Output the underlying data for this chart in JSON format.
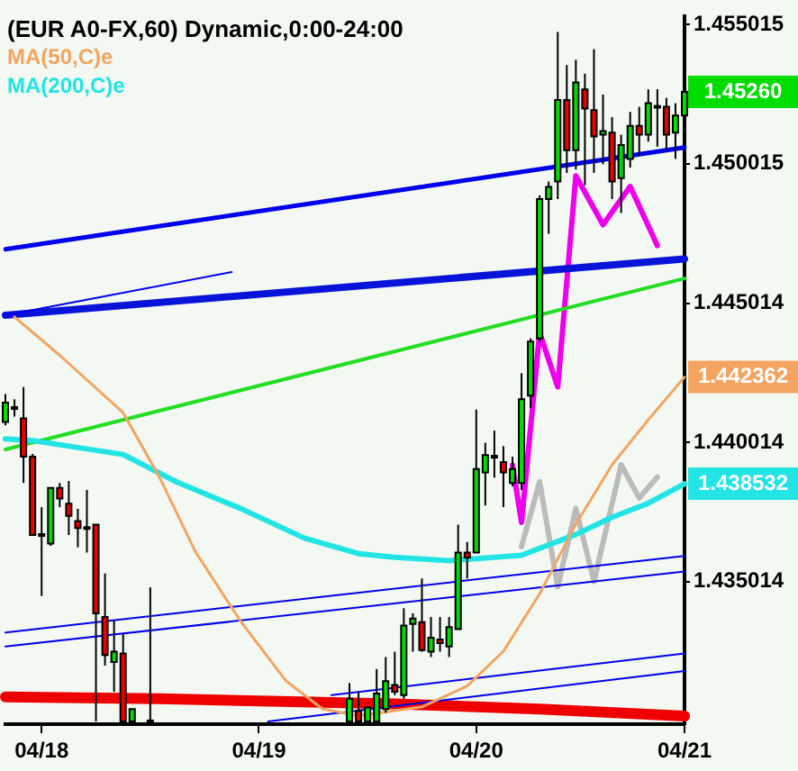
{
  "chart_data": {
    "type": "candlestick",
    "title": "(EUR A0-FX,60) Dynamic,0:00-24:00",
    "categories": [
      null,
      null,
      null,
      null,
      "04/18",
      null,
      null,
      null,
      null,
      null,
      null,
      null,
      null,
      null,
      null,
      null,
      null,
      null,
      null,
      null,
      null,
      null,
      null,
      null,
      null,
      null,
      null,
      null,
      "04/19",
      null,
      null,
      null,
      null,
      null,
      null,
      null,
      null,
      null,
      null,
      null,
      null,
      null,
      null,
      null,
      null,
      null,
      null,
      null,
      null,
      null,
      null,
      null,
      "04/20",
      null,
      null,
      null,
      null,
      null,
      null,
      null,
      null,
      null,
      null,
      null,
      null,
      null,
      null,
      null,
      null,
      null,
      null,
      null,
      null,
      null,
      null,
      "04/21"
    ],
    "ohlc": [
      [
        1.44075,
        1.44175,
        1.44063,
        1.44144
      ],
      [
        1.44119,
        1.44156,
        1.44094,
        1.44125
      ],
      [
        1.44088,
        1.442,
        1.43856,
        1.4395
      ],
      [
        1.4395,
        1.4396,
        1.43669,
        1.43669
      ],
      [
        1.43669,
        1.43769,
        1.4345,
        1.43663
      ],
      [
        1.43638,
        1.4384,
        1.4363,
        1.43838
      ],
      [
        1.43838,
        1.43856,
        1.43769,
        1.438
      ],
      [
        1.43781,
        1.43863,
        1.43669,
        1.43738
      ],
      [
        1.43719,
        1.43763,
        1.43625,
        1.43694
      ],
      [
        1.43694,
        1.43831,
        1.43606,
        1.4369
      ],
      [
        1.43706,
        1.43706,
        1.43,
        1.43388
      ],
      [
        1.43375,
        1.43531,
        1.432,
        1.43238
      ],
      [
        1.43213,
        1.43363,
        1.43106,
        1.4325
      ],
      [
        1.43244,
        1.43313,
        1.43,
        1.43
      ],
      [
        1.43,
        1.43044,
        1.43,
        1.43044
      ],
      null,
      [
        1.43,
        1.43481,
        1.43,
        1.43
      ],
      null,
      null,
      null,
      null,
      null,
      null,
      null,
      null,
      null,
      null,
      null,
      null,
      null,
      null,
      null,
      null,
      null,
      null,
      null,
      null,
      null,
      [
        1.43,
        1.43138,
        1.43,
        1.43081
      ],
      [
        1.43038,
        1.43106,
        1.43,
        1.43
      ],
      [
        1.43,
        1.4305,
        1.43,
        1.4305
      ],
      [
        1.43,
        1.43188,
        1.43,
        1.431
      ],
      [
        1.43044,
        1.43231,
        1.43031,
        1.43144
      ],
      [
        1.43131,
        1.4325,
        1.43094,
        1.43106
      ],
      [
        1.43094,
        1.43406,
        1.43081,
        1.43344
      ],
      [
        1.4335,
        1.43388,
        1.4325,
        1.43369
      ],
      [
        1.43356,
        1.43513,
        1.4325,
        1.43256
      ],
      [
        1.4325,
        1.43375,
        1.43231,
        1.433
      ],
      [
        1.43294,
        1.43375,
        1.4325,
        1.43281
      ],
      [
        1.43269,
        1.43375,
        1.43231,
        1.43338
      ],
      [
        1.43331,
        1.43706,
        1.43331,
        1.43606
      ],
      [
        1.43606,
        1.43644,
        1.43513,
        1.43588
      ],
      [
        1.43606,
        1.44119,
        1.43606,
        1.43906
      ],
      [
        1.43894,
        1.44,
        1.43775,
        1.43956
      ],
      [
        1.4395,
        1.44044,
        1.43875,
        1.43944
      ],
      [
        1.43931,
        1.43988,
        1.43769,
        1.43894
      ],
      [
        1.43856,
        1.4395,
        1.43844,
        1.43906
      ],
      [
        1.43856,
        1.4425,
        1.43831,
        1.44156
      ],
      [
        1.44169,
        1.44375,
        1.44125,
        1.44363
      ],
      [
        1.44375,
        1.44888,
        1.44363,
        1.44875
      ],
      [
        1.44875,
        1.44938,
        1.4475,
        1.44919
      ],
      [
        1.44938,
        1.45475,
        1.44875,
        1.45231
      ],
      [
        1.45231,
        1.45356,
        1.44969,
        1.4505
      ],
      [
        1.4505,
        1.45375,
        1.44981,
        1.45294
      ],
      [
        1.45269,
        1.45325,
        1.44925,
        1.452
      ],
      [
        1.45194,
        1.45413,
        1.44969,
        1.451
      ],
      [
        1.45106,
        1.4525,
        1.45,
        1.45119
      ],
      [
        1.45113,
        1.45169,
        1.44875,
        1.44938
      ],
      [
        1.4495,
        1.45106,
        1.44825,
        1.45069
      ],
      [
        1.45019,
        1.45188,
        1.44988,
        1.45138
      ],
      [
        1.45138,
        1.45206,
        1.45031,
        1.45106
      ],
      [
        1.45106,
        1.45269,
        1.45081,
        1.45219
      ],
      [
        1.45206,
        1.45269,
        1.45063,
        1.452
      ],
      [
        1.45206,
        1.45238,
        1.4505,
        1.45106
      ],
      [
        1.45113,
        1.45219,
        1.45019,
        1.45175
      ],
      [
        1.45175,
        1.453,
        1.45125,
        1.4526
      ]
    ],
    "series": [
      {
        "type": "line",
        "name": "MA(50,C)e",
        "color": "#f4a460",
        "values": [
          null,
          1.44452,
          null,
          null,
          null,
          null,
          1.44314,
          null,
          null,
          null,
          null,
          null,
          null,
          1.44108,
          null,
          null,
          null,
          1.43877,
          null,
          null,
          null,
          1.43608,
          null,
          null,
          null,
          null,
          1.43358,
          null,
          null,
          null,
          null,
          1.43145,
          null,
          null,
          null,
          1.43045,
          null,
          null,
          null,
          1.4302,
          null,
          null,
          null,
          null,
          null,
          null,
          1.43052,
          null,
          null,
          null,
          null,
          1.43127,
          null,
          null,
          null,
          1.43252,
          null,
          null,
          null,
          1.43458,
          null,
          null,
          null,
          1.43708,
          null,
          null,
          null,
          1.43921,
          null,
          null,
          null,
          1.44083,
          null,
          null,
          null,
          1.44236
        ]
      },
      {
        "type": "line",
        "name": "MA(200,C)e",
        "color": "#22e4e4",
        "values": [
          1.44014,
          null,
          null,
          1.44008,
          null,
          null,
          null,
          null,
          null,
          null,
          null,
          null,
          null,
          1.43958,
          null,
          null,
          null,
          null,
          null,
          1.43858,
          null,
          null,
          null,
          null,
          null,
          null,
          1.43764,
          null,
          null,
          null,
          null,
          null,
          null,
          1.43658,
          null,
          null,
          null,
          null,
          null,
          1.43602,
          null,
          null,
          null,
          1.43589,
          null,
          null,
          null,
          null,
          null,
          1.43577,
          null,
          null,
          null,
          null,
          null,
          null,
          null,
          1.43596,
          null,
          null,
          null,
          null,
          null,
          1.43671,
          null,
          null,
          null,
          1.43733,
          null,
          null,
          null,
          1.43783,
          null,
          null,
          null,
          1.43853
        ]
      },
      {
        "type": "line",
        "color": "#0000ee",
        "values": [
          1.44695,
          null,
          null,
          null,
          null,
          null,
          null,
          null,
          null,
          null,
          null,
          null,
          null,
          null,
          null,
          null,
          null,
          null,
          null,
          null,
          null,
          null,
          null,
          null,
          null,
          null,
          null,
          null,
          null,
          null,
          null,
          null,
          null,
          null,
          null,
          null,
          null,
          null,
          null,
          null,
          null,
          null,
          null,
          null,
          null,
          null,
          null,
          null,
          null,
          null,
          null,
          null,
          null,
          null,
          null,
          null,
          null,
          null,
          null,
          null,
          null,
          null,
          null,
          null,
          null,
          null,
          null,
          null,
          null,
          null,
          null,
          null,
          null,
          null,
          null,
          1.4506
        ]
      },
      {
        "type": "line",
        "color": "#0000ee",
        "values": [
          1.44458,
          null,
          null,
          null,
          null,
          null,
          null,
          null,
          null,
          null,
          null,
          null,
          null,
          null,
          null,
          null,
          null,
          null,
          null,
          null,
          null,
          null,
          null,
          null,
          null,
          1.44613,
          null,
          null,
          null,
          null,
          null,
          null,
          null,
          null,
          null,
          null,
          null,
          null,
          null,
          null,
          null,
          null,
          null,
          null,
          null,
          null,
          null,
          null,
          null,
          null,
          null,
          null,
          null,
          null,
          null,
          null,
          null,
          null,
          null,
          null,
          null,
          null,
          null,
          null,
          null,
          null,
          null,
          null,
          null,
          null,
          null,
          null,
          null,
          null,
          null,
          null
        ]
      },
      {
        "type": "line",
        "color": "#0a14d8",
        "values": [
          1.44458,
          null,
          null,
          null,
          null,
          null,
          null,
          null,
          null,
          null,
          null,
          null,
          null,
          null,
          null,
          null,
          null,
          null,
          null,
          null,
          null,
          null,
          null,
          null,
          null,
          null,
          null,
          null,
          null,
          null,
          null,
          null,
          null,
          null,
          null,
          null,
          null,
          null,
          null,
          null,
          null,
          null,
          null,
          null,
          null,
          null,
          null,
          null,
          null,
          null,
          null,
          null,
          null,
          null,
          null,
          null,
          null,
          null,
          null,
          null,
          null,
          null,
          null,
          null,
          null,
          null,
          null,
          null,
          null,
          null,
          null,
          null,
          null,
          null,
          null,
          1.4466
        ]
      },
      {
        "type": "line",
        "color": "#22dd22",
        "values": [
          1.43976,
          null,
          null,
          null,
          null,
          null,
          null,
          null,
          null,
          null,
          null,
          null,
          null,
          null,
          null,
          null,
          null,
          null,
          null,
          null,
          null,
          null,
          null,
          null,
          null,
          null,
          null,
          null,
          null,
          null,
          null,
          null,
          null,
          null,
          null,
          null,
          null,
          null,
          null,
          null,
          null,
          null,
          null,
          null,
          null,
          null,
          null,
          null,
          null,
          null,
          null,
          null,
          null,
          null,
          null,
          null,
          null,
          null,
          null,
          null,
          null,
          null,
          null,
          null,
          null,
          null,
          null,
          null,
          null,
          null,
          null,
          null,
          null,
          null,
          null,
          1.4459
        ]
      },
      {
        "type": "line",
        "color": "#0000ee",
        "values": [
          1.43319,
          null,
          null,
          null,
          null,
          null,
          null,
          null,
          null,
          null,
          null,
          null,
          null,
          null,
          null,
          null,
          null,
          null,
          null,
          null,
          null,
          null,
          null,
          null,
          null,
          null,
          null,
          null,
          null,
          null,
          null,
          null,
          null,
          null,
          null,
          null,
          null,
          null,
          null,
          null,
          null,
          null,
          null,
          null,
          null,
          null,
          null,
          null,
          null,
          null,
          null,
          null,
          null,
          null,
          null,
          null,
          null,
          null,
          null,
          null,
          null,
          null,
          null,
          null,
          null,
          null,
          null,
          null,
          null,
          null,
          null,
          null,
          null,
          null,
          null,
          1.43594
        ]
      },
      {
        "type": "line",
        "color": "#0000ee",
        "values": [
          1.43269,
          null,
          null,
          null,
          null,
          null,
          null,
          null,
          null,
          null,
          null,
          null,
          null,
          null,
          null,
          null,
          null,
          null,
          null,
          null,
          null,
          null,
          null,
          null,
          null,
          null,
          null,
          null,
          null,
          null,
          null,
          null,
          null,
          null,
          null,
          null,
          null,
          null,
          null,
          null,
          null,
          null,
          null,
          null,
          null,
          null,
          null,
          null,
          null,
          null,
          null,
          null,
          null,
          null,
          null,
          null,
          null,
          null,
          null,
          null,
          null,
          null,
          null,
          null,
          null,
          null,
          null,
          null,
          null,
          null,
          null,
          null,
          null,
          null,
          null,
          1.43538
        ]
      },
      {
        "type": "line",
        "color": "#0000ee",
        "values": [
          null,
          null,
          null,
          null,
          null,
          null,
          null,
          null,
          null,
          null,
          null,
          null,
          null,
          null,
          null,
          null,
          null,
          null,
          null,
          null,
          null,
          null,
          null,
          null,
          null,
          null,
          null,
          null,
          null,
          null,
          null,
          null,
          null,
          null,
          null,
          null,
          1.43094,
          null,
          null,
          null,
          null,
          null,
          null,
          null,
          null,
          null,
          null,
          null,
          null,
          null,
          null,
          null,
          null,
          null,
          null,
          null,
          null,
          null,
          null,
          null,
          null,
          null,
          null,
          null,
          null,
          null,
          null,
          null,
          null,
          null,
          null,
          null,
          null,
          null,
          null,
          1.43244
        ]
      },
      {
        "type": "line",
        "color": "#0000ee",
        "values": [
          null,
          null,
          null,
          null,
          null,
          null,
          null,
          null,
          null,
          null,
          null,
          null,
          null,
          null,
          null,
          null,
          null,
          null,
          null,
          null,
          null,
          null,
          null,
          null,
          null,
          null,
          null,
          null,
          null,
          1.43,
          null,
          null,
          null,
          null,
          null,
          null,
          null,
          null,
          null,
          null,
          null,
          null,
          null,
          null,
          null,
          null,
          null,
          null,
          null,
          null,
          null,
          null,
          null,
          null,
          null,
          null,
          null,
          null,
          null,
          null,
          null,
          null,
          null,
          null,
          null,
          null,
          null,
          null,
          null,
          null,
          null,
          null,
          null,
          null,
          null,
          1.43181
        ]
      },
      {
        "type": "line",
        "color": "#ee0000",
        "values": [
          1.43088,
          null,
          null,
          null,
          null,
          null,
          null,
          null,
          null,
          null,
          null,
          null,
          null,
          null,
          null,
          null,
          null,
          1.43081,
          null,
          null,
          null,
          null,
          null,
          null,
          null,
          null,
          null,
          null,
          null,
          null,
          null,
          null,
          null,
          null,
          null,
          null,
          null,
          null,
          null,
          null,
          null,
          null,
          null,
          1.43063,
          null,
          null,
          null,
          null,
          null,
          null,
          null,
          null,
          null,
          null,
          null,
          null,
          null,
          null,
          null,
          1.43044,
          null,
          null,
          null,
          null,
          null,
          null,
          null,
          null,
          null,
          null,
          null,
          null,
          null,
          null,
          null,
          1.43019
        ]
      },
      {
        "type": "line",
        "color": "#ee00ee",
        "values": [
          null,
          null,
          null,
          null,
          null,
          null,
          null,
          null,
          null,
          null,
          null,
          null,
          null,
          null,
          null,
          null,
          null,
          null,
          null,
          null,
          null,
          null,
          null,
          null,
          null,
          null,
          null,
          null,
          null,
          null,
          null,
          null,
          null,
          null,
          null,
          null,
          null,
          null,
          null,
          null,
          null,
          null,
          null,
          null,
          null,
          null,
          null,
          null,
          null,
          null,
          null,
          null,
          null,
          null,
          null,
          null,
          1.4392,
          1.43714,
          null,
          1.44395,
          null,
          1.44201,
          null,
          1.44958,
          null,
          null,
          1.44783,
          null,
          null,
          1.4492,
          null,
          null,
          1.44708,
          null,
          null,
          null
        ]
      },
      {
        "type": "line",
        "color": "#bbbbbb",
        "values": [
          null,
          null,
          null,
          null,
          null,
          null,
          null,
          null,
          null,
          null,
          null,
          null,
          null,
          null,
          null,
          null,
          null,
          null,
          null,
          null,
          null,
          null,
          null,
          null,
          null,
          null,
          null,
          null,
          null,
          null,
          null,
          null,
          null,
          null,
          null,
          null,
          null,
          null,
          null,
          null,
          null,
          null,
          null,
          null,
          null,
          null,
          null,
          null,
          null,
          null,
          null,
          null,
          null,
          null,
          null,
          null,
          null,
          1.43627,
          null,
          1.4386,
          null,
          1.43483,
          null,
          1.43764,
          null,
          1.43502,
          null,
          null,
          1.43921,
          null,
          1.43802,
          null,
          1.43877,
          null,
          null,
          null
        ]
      }
    ],
    "ylim": [
      1.4299,
      1.4553
    ],
    "yticks": [
      1.455015,
      1.450015,
      1.445014,
      1.440014,
      1.435014
    ],
    "annotations": [
      "1.45260",
      "1.442362",
      "1.438532"
    ],
    "legend": "top left",
    "grid": false
  }
}
